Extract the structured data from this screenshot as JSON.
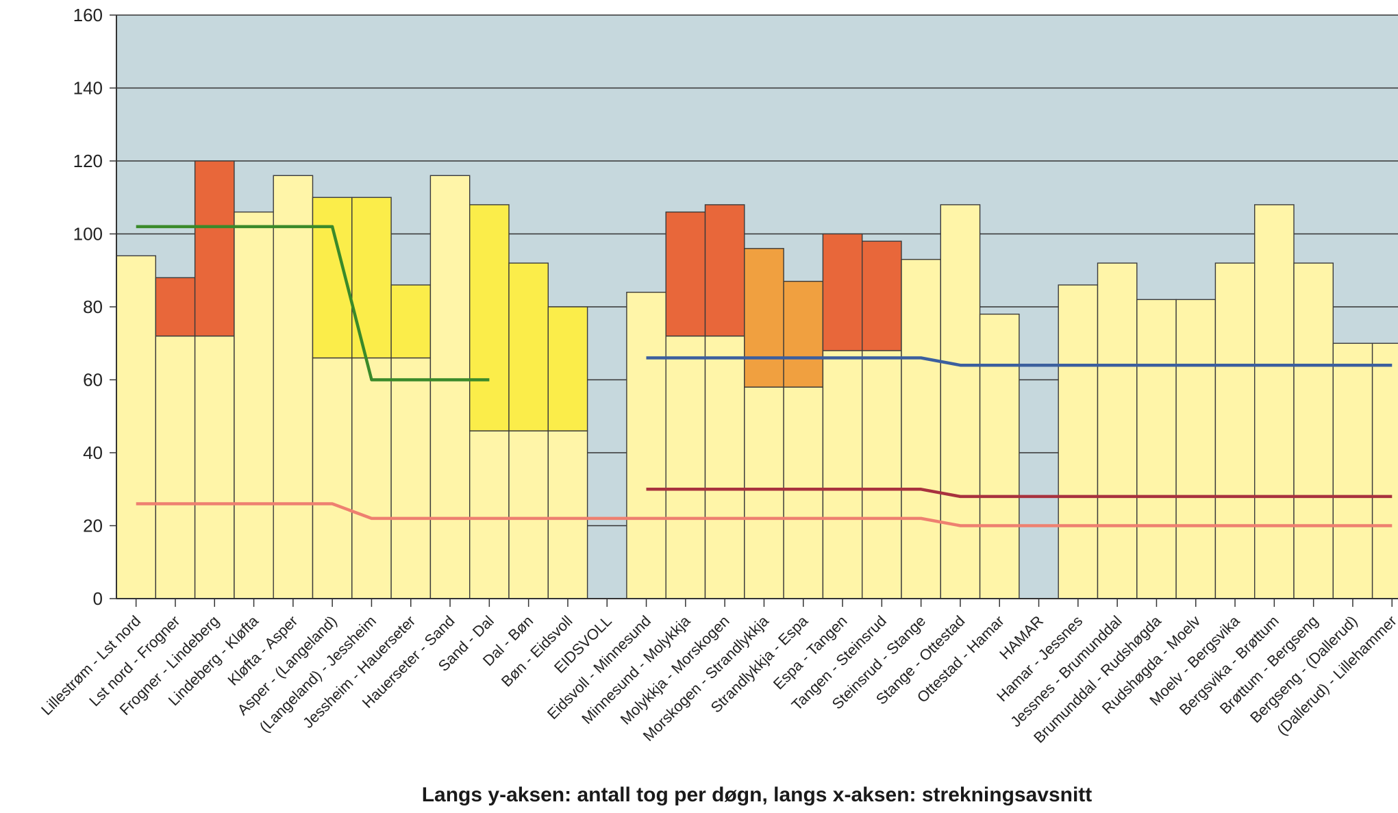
{
  "chart_data": {
    "type": "bar",
    "title": "",
    "xlabel": "Langs y-aksen: antall tog per døgn, langs x-aksen: strekningsavsnitt",
    "ylabel": "",
    "ylim": [
      0,
      160
    ],
    "yticks": [
      0,
      20,
      40,
      60,
      80,
      100,
      120,
      140,
      160
    ],
    "grid": true,
    "legend": "none",
    "categories": [
      "Lillestrøm - Lst nord",
      "Lst nord - Frogner",
      "Frogner - Lindeberg",
      "Lindeberg - Kløfta",
      "Kløfta - Asper",
      "Asper - (Langeland)",
      "(Langeland) - Jessheim",
      "Jessheim - Hauerseter",
      "Hauerseter - Sand",
      "Sand - Dal",
      "Dal - Bøn",
      "Bøn - Eidsvoll",
      "EIDSVOLL",
      "Eidsvoll - Minnesund",
      "Minnesund - Molykkja",
      "Molykkja - Morskogen",
      "Morskogen - Strandlykkja",
      "Strandlykkja - Espa",
      "Espa - Tangen",
      "Tangen - Steinsrud",
      "Steinsrud - Stange",
      "Stange - Ottestad",
      "Ottestad - Hamar",
      "HAMAR",
      "Hamar - Jessnes",
      "Jessnes - Brumunddal",
      "Brumunddal - Rudshøgda",
      "Rudshøgda - Moelv",
      "Moelv - Bergsvika",
      "Bergsvika - Brøttum",
      "Brøttum - Bergseng",
      "Bergseng - (Dallerud)",
      "(Dallerud) - Lillehammer"
    ],
    "bars": [
      {
        "base": 94,
        "top": 94,
        "color": "#fff5a8"
      },
      {
        "base": 72,
        "top": 88,
        "color": "#e8673a"
      },
      {
        "base": 72,
        "top": 120,
        "color": "#e8673a"
      },
      {
        "base": 106,
        "top": 106,
        "color": "#fff5a8"
      },
      {
        "base": 116,
        "top": 116,
        "color": "#fff5a8"
      },
      {
        "base": 66,
        "top": 110,
        "color": "#fbed4a"
      },
      {
        "base": 66,
        "top": 110,
        "color": "#fbed4a"
      },
      {
        "base": 66,
        "top": 86,
        "color": "#fbed4a"
      },
      {
        "base": 116,
        "top": 116,
        "color": "#fff5a8"
      },
      {
        "base": 46,
        "top": 108,
        "color": "#fbed4a"
      },
      {
        "base": 46,
        "top": 92,
        "color": "#fbed4a"
      },
      {
        "base": 46,
        "top": 80,
        "color": "#fbed4a"
      },
      null,
      {
        "base": 84,
        "top": 84,
        "color": "#fff5a8"
      },
      {
        "base": 72,
        "top": 106,
        "color": "#e8673a"
      },
      {
        "base": 72,
        "top": 108,
        "color": "#e8673a"
      },
      {
        "base": 58,
        "top": 96,
        "color": "#f0a040"
      },
      {
        "base": 58,
        "top": 87,
        "color": "#f0a040"
      },
      {
        "base": 68,
        "top": 100,
        "color": "#e8673a"
      },
      {
        "base": 68,
        "top": 98,
        "color": "#e8673a"
      },
      {
        "base": 93,
        "top": 93,
        "color": "#fff5a8"
      },
      {
        "base": 108,
        "top": 108,
        "color": "#fff5a8"
      },
      {
        "base": 78,
        "top": 78,
        "color": "#fff5a8"
      },
      null,
      {
        "base": 86,
        "top": 86,
        "color": "#fff5a8"
      },
      {
        "base": 92,
        "top": 92,
        "color": "#fff5a8"
      },
      {
        "base": 82,
        "top": 82,
        "color": "#fff5a8"
      },
      {
        "base": 82,
        "top": 82,
        "color": "#fff5a8"
      },
      {
        "base": 92,
        "top": 92,
        "color": "#fff5a8"
      },
      {
        "base": 108,
        "top": 108,
        "color": "#fff5a8"
      },
      {
        "base": 92,
        "top": 92,
        "color": "#fff5a8"
      },
      {
        "base": 70,
        "top": 70,
        "color": "#fff5a8"
      },
      {
        "base": 70,
        "top": 70,
        "color": "#fff5a8"
      }
    ],
    "lines": [
      {
        "color": "#3a8a2a",
        "points": [
          [
            0.5,
            102
          ],
          [
            5.5,
            102
          ],
          [
            6.5,
            60
          ],
          [
            9.5,
            60
          ]
        ]
      },
      {
        "color": "#3b5f9e",
        "points": [
          [
            13.5,
            66
          ],
          [
            20.5,
            66
          ],
          [
            21.5,
            64
          ],
          [
            32.5,
            64
          ]
        ]
      },
      {
        "color": "#a8323e",
        "points": [
          [
            13.5,
            30
          ],
          [
            20.5,
            30
          ],
          [
            21.5,
            28
          ],
          [
            32.5,
            28
          ]
        ]
      },
      {
        "color": "#ee8070",
        "points": [
          [
            0.5,
            26
          ],
          [
            5.5,
            26
          ],
          [
            6.5,
            22
          ],
          [
            20.5,
            22
          ],
          [
            21.5,
            20
          ],
          [
            32.5,
            20
          ]
        ]
      }
    ],
    "colors": {
      "plot_background": "#c6d8dd",
      "light_bar": "#fff5a8",
      "yellow": "#fbed4a",
      "red_orange": "#e8673a",
      "orange": "#f0a040",
      "gridline": "#333333"
    }
  }
}
